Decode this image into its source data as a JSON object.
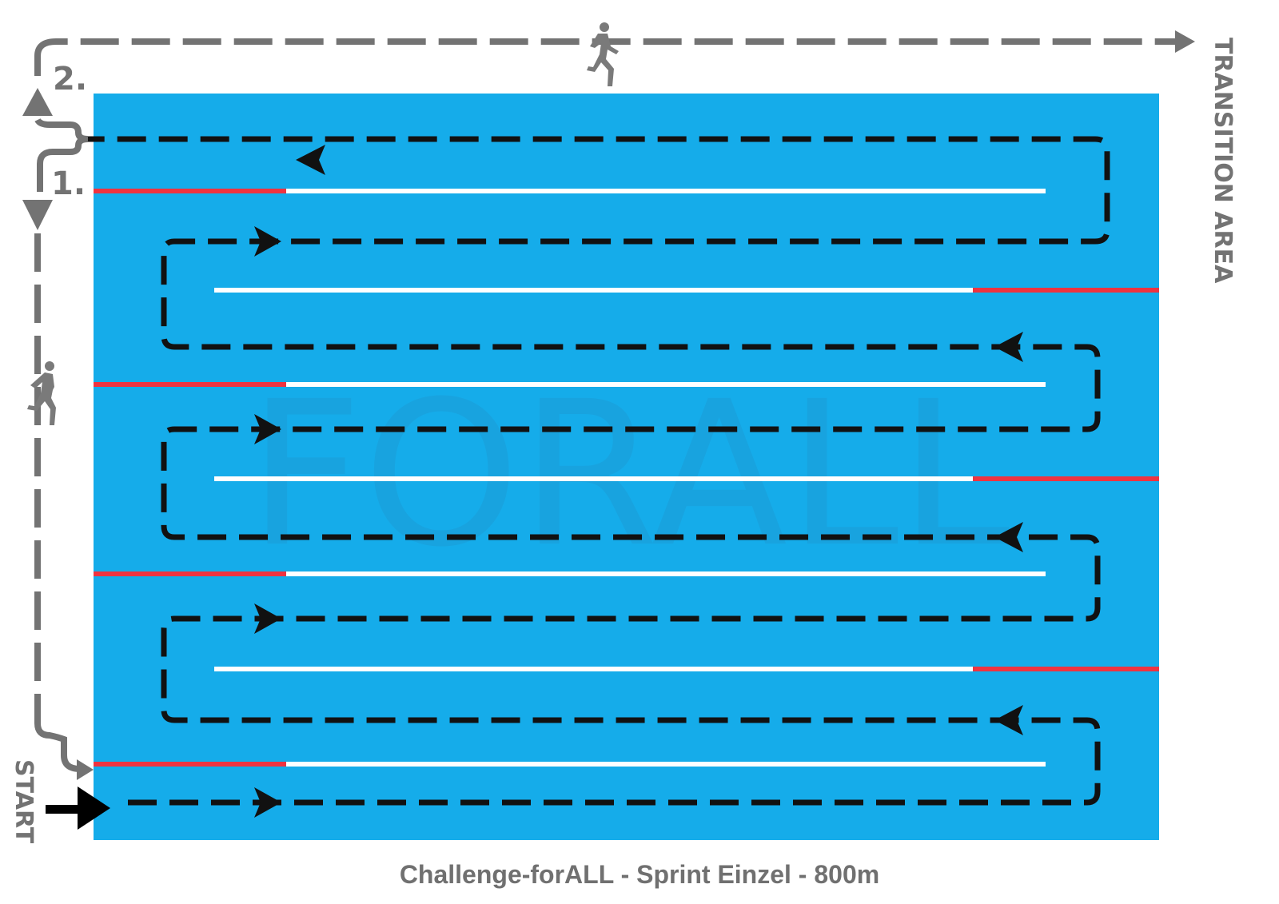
{
  "caption": "Challenge-forALL - Sprint Einzel - 800m",
  "labels": {
    "transition_area": "TRANSITION AREA",
    "start": "START",
    "step_1": "1.",
    "step_2": "2."
  },
  "watermark": "FORALL",
  "colors": {
    "pool": "#15acea",
    "lane_red": "#ef3340",
    "lane_white": "#ffffff",
    "swim_path": "#111111",
    "run_path": "#737373"
  },
  "icons": [
    "runner-icon",
    "arrow-right-icon",
    "arrow-up-icon",
    "arrow-down-icon"
  ]
}
